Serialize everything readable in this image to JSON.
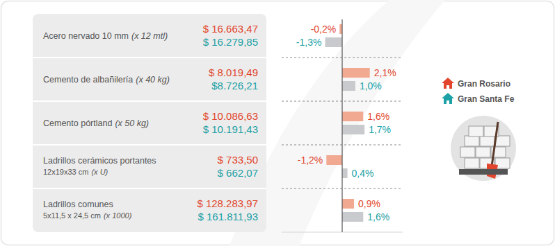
{
  "chart_data": {
    "type": "bar",
    "orientation": "horizontal",
    "categories": [
      "Acero nervado 10 mm",
      "Cemento de albañilería",
      "Cemento pórtland",
      "Ladrillos cerámicos portantes",
      "Ladrillos comunes"
    ],
    "units": [
      "(x 12 mtl)",
      "(x 40 kg)",
      "(x 50 kg)",
      "(x U)",
      "(x 1000)"
    ],
    "sizes": [
      null,
      null,
      null,
      "12x19x33 cm",
      "5x11,5 x 24,5 cm"
    ],
    "series": [
      {
        "name": "Gran Rosario",
        "color": "#e2452c",
        "values": [
          -0.2,
          2.1,
          1.6,
          -1.2,
          0.9
        ],
        "value_labels": [
          "-0,2%",
          "2,1%",
          "1,6%",
          "-1,2%",
          "0,9%"
        ],
        "prices": [
          "$ 16.663,47",
          "$ 8.019,49",
          "$ 10.086,63",
          "$ 733,50",
          "$ 128.283,97"
        ]
      },
      {
        "name": "Gran Santa Fe",
        "color": "#1ba1a6",
        "values": [
          -1.3,
          1.0,
          1.7,
          0.4,
          1.6
        ],
        "value_labels": [
          "-1,3%",
          "1,0%",
          "1,7%",
          "0,4%",
          "1,6%"
        ],
        "prices": [
          "$ 16.279,85",
          "$8.726,21",
          "$ 10.191,43",
          "$ 662,07",
          "$ 161.811,93"
        ]
      }
    ],
    "xlim": [
      -4.6,
      4.6
    ],
    "xticks": [
      0
    ],
    "tick_labels": false,
    "data_labels": true,
    "legend": "right"
  }
}
